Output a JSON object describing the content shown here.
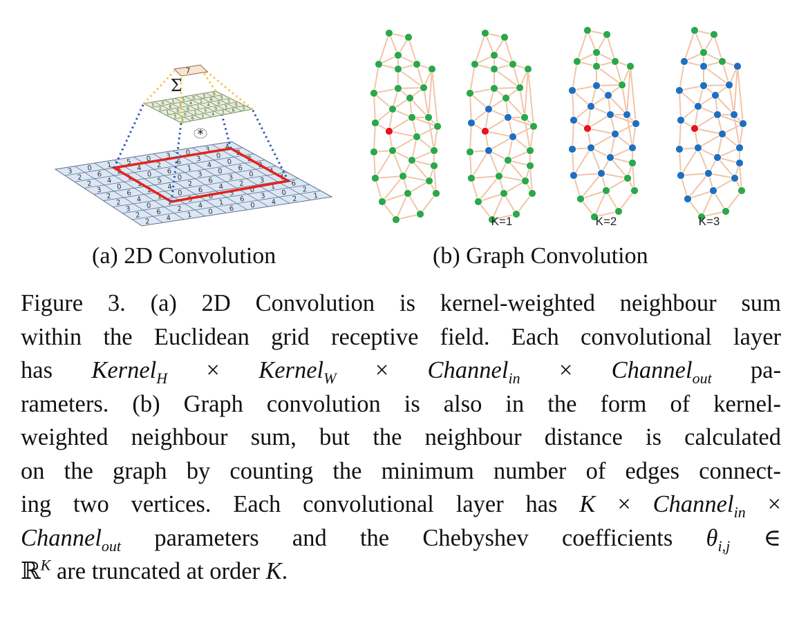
{
  "figure": {
    "panel_a": {
      "sum_symbol": "Σ",
      "output_value": "7",
      "conv_operator": "*",
      "input_grid": [
        [
          "3",
          "0",
          "1",
          "5",
          "0",
          "3",
          "0",
          "3",
          "4"
        ],
        [
          "2",
          "6",
          "2",
          "4",
          "2",
          "6",
          "3",
          "0",
          "2"
        ],
        [
          "2",
          "4",
          "1",
          "0",
          "6",
          "1",
          "4",
          "0",
          "2"
        ],
        [
          "3",
          "0",
          "1",
          "5",
          "0",
          "3",
          "0",
          "6",
          "2"
        ],
        [
          "2",
          "6",
          "2",
          "4",
          "2",
          "6",
          "3",
          "0",
          "4"
        ],
        [
          "2",
          "4",
          "1",
          "0",
          "6",
          "4",
          "2",
          "3",
          "1"
        ],
        [
          "3",
          "0",
          "1",
          "5",
          "0",
          "3",
          "0",
          "1",
          "6"
        ],
        [
          "2",
          "6",
          "2",
          "4",
          "1",
          "6",
          "3",
          "0",
          "2"
        ],
        [
          "2",
          "4",
          "1",
          "0",
          "6",
          "0",
          "4",
          "2",
          "1"
        ]
      ],
      "kernel_grid": [
        [
          "3",
          "0",
          "1",
          "5",
          "0",
          "3",
          "0"
        ],
        [
          "2",
          "6",
          "2",
          "4",
          "2",
          "6",
          "3"
        ],
        [
          "1",
          "0",
          "6",
          "1",
          "4",
          "0",
          "2"
        ],
        [
          "3",
          "0",
          "1",
          "5",
          "0",
          "3",
          "0"
        ],
        [
          "2",
          "6",
          "2",
          "4",
          "2",
          "6",
          "3"
        ]
      ]
    },
    "panel_b": {
      "k_labels": [
        "K=1",
        "K=2",
        "K=3"
      ]
    },
    "colors": {
      "edge": "#f2c4a6",
      "node_green": "#2aa84a",
      "node_blue": "#1f6fc0",
      "node_red": "#e8141b",
      "receptive_field": "#e2231a",
      "grid_fill": "#dbe7f5",
      "kernel_fill": "#e6efd9",
      "output_fill": "#fbe3cf",
      "dotted_blue": "#2f55b5",
      "dotted_yellow": "#f3c63a"
    }
  },
  "subcaptions": {
    "a": "(a)  2D Convolution",
    "b": "(b)  Graph Convolution"
  },
  "caption": {
    "l1_a": "Figure 3. (a) 2D Convolution is kernel-weighted neighbour sum",
    "l2": "within the Euclidean grid receptive field. Each convolutional layer",
    "l3_a": "has",
    "l3_m1": "Kernel",
    "l3_s1": "H",
    "l3_x1": "×",
    "l3_m2": "Kernel",
    "l3_s2": "W",
    "l3_x2": "×",
    "l3_m3": "Channel",
    "l3_s3": "in",
    "l3_x3": "×",
    "l3_m4": "Channel",
    "l3_s4": "out",
    "l3_b": "pa-",
    "l4": "rameters.  (b) Graph convolution is also in the form of kernel-",
    "l5": "weighted neighbour sum, but the neighbour distance is calculated",
    "l6": "on the graph by counting the minimum number of edges connect-",
    "l7_a": "ing two vertices. Each convolutional layer has",
    "l7_m1": "K",
    "l7_x1": "×",
    "l7_m2": "Channel",
    "l7_s2": "in",
    "l7_x2": "×",
    "l8_m1": "Channel",
    "l8_s1": "out",
    "l8_a": "parameters and the Chebyshev coefficients",
    "l8_m2": "θ",
    "l8_s2": "i,j",
    "l8_x": "∈",
    "l9_r": "ℝ",
    "l9_sup": "K",
    "l9_a": "are truncated at order",
    "l9_m": "K",
    "l9_end": "."
  }
}
